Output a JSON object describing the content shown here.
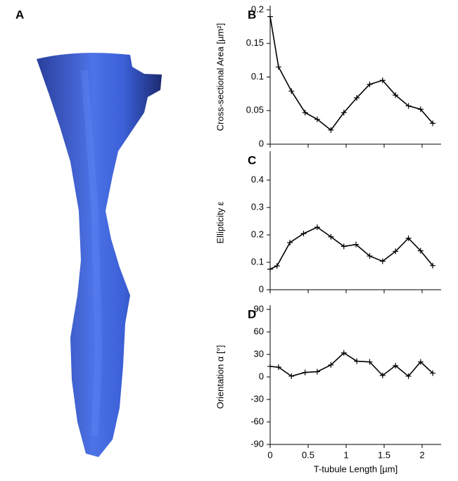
{
  "panel_a": {
    "label": "A"
  },
  "chart_data": [
    {
      "type": "line",
      "panel": "B",
      "y_label": "Cross-sectional Area [µm²]",
      "x": [
        0,
        0.11,
        0.28,
        0.46,
        0.62,
        0.8,
        0.97,
        1.14,
        1.31,
        1.48,
        1.65,
        1.82,
        1.98,
        2.14
      ],
      "series": [
        {
          "color": "#000000",
          "values": [
            0.19,
            0.115,
            0.079,
            0.047,
            0.037,
            0.021,
            0.047,
            0.069,
            0.089,
            0.095,
            0.073,
            0.057,
            0.052,
            0.031
          ]
        }
      ],
      "xlim": [
        0,
        2.25
      ],
      "xticks": [
        0,
        0.5,
        1,
        1.5,
        2
      ],
      "xtick_labels": false,
      "ylim": [
        0,
        0.2
      ],
      "yticks": [
        0,
        0.05,
        0.1,
        0.15,
        0.2
      ]
    },
    {
      "type": "line",
      "panel": "C",
      "y_label": "Ellipticity  ε",
      "x": [
        0,
        0.09,
        0.26,
        0.44,
        0.62,
        0.8,
        0.97,
        1.13,
        1.31,
        1.48,
        1.65,
        1.82,
        1.98,
        2.14
      ],
      "series": [
        {
          "color": "#000000",
          "values": [
            0.075,
            0.087,
            0.172,
            0.205,
            0.228,
            0.193,
            0.158,
            0.165,
            0.123,
            0.104,
            0.14,
            0.188,
            0.142,
            0.088
          ]
        }
      ],
      "xlim": [
        0,
        2.25
      ],
      "xticks": [
        0,
        0.5,
        1,
        1.5,
        2
      ],
      "xtick_labels": false,
      "ylim": [
        0,
        0.49
      ],
      "yticks": [
        0,
        0.1,
        0.2,
        0.3,
        0.4
      ]
    },
    {
      "type": "line",
      "panel": "D",
      "y_label": "Orientation α [°]",
      "x_label": "T-tubule Length [µm]",
      "x": [
        0,
        0.11,
        0.28,
        0.46,
        0.62,
        0.8,
        0.97,
        1.14,
        1.31,
        1.48,
        1.65,
        1.82,
        1.98,
        2.14
      ],
      "series": [
        {
          "color": "#000000",
          "values": [
            14,
            13,
            1,
            6,
            7,
            16,
            32,
            21,
            20,
            2,
            15,
            1,
            20,
            5
          ]
        }
      ],
      "xlim": [
        0,
        2.25
      ],
      "xticks": [
        0,
        0.5,
        1,
        1.5,
        2
      ],
      "xtick_labels": true,
      "ylim": [
        -90,
        90
      ],
      "yticks": [
        -90,
        -60,
        -30,
        0,
        30,
        60,
        90
      ]
    }
  ]
}
